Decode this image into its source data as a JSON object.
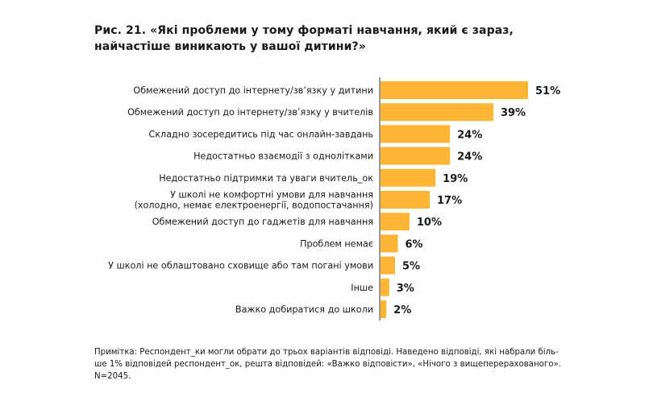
{
  "chart_data": {
    "type": "bar",
    "orientation": "horizontal",
    "title": "Рис. 21. «Які проблеми у тому форматі навчання, який є зараз, найчастіше виникають у вашої дитини?»",
    "categories": [
      "Обмежений доступ до інтернету/зв’язку у дитини",
      "Обмежений доступ до інтернету/зв’язку у вчителів",
      "Складно зосередитись під час онлайн-завдань",
      "Недостатньо взаємодії з однолітками",
      "Недостатньо підтримки та уваги вчитель_ок",
      "У школі не комфортні умови для навчання\n(холодно, немає електроенергії, водопостачання)",
      "Обмежений доступ до гаджетів для навчання",
      "Проблем немає",
      "У школі не облаштовано сховище або там погані умови",
      "Інше",
      "Важко добиратися до школи"
    ],
    "values": [
      51,
      39,
      24,
      24,
      19,
      17,
      10,
      6,
      5,
      3,
      2
    ],
    "value_labels": [
      "51%",
      "39%",
      "24%",
      "24%",
      "19%",
      "17%",
      "10%",
      "6%",
      "5%",
      "3%",
      "2%"
    ],
    "bar_color": "#FDB533",
    "axis_color": "#333333",
    "xlim": [
      0,
      51
    ]
  },
  "note": "Примітка: Респондент_ки могли обрати до трьох варіантів відповіді. Наведено відповіді, які набрали біль-ше 1% відповідей респондент_ок, решта відповідей: «Важко відповісти», «Нічого з вищеперерахованого». N=2045."
}
